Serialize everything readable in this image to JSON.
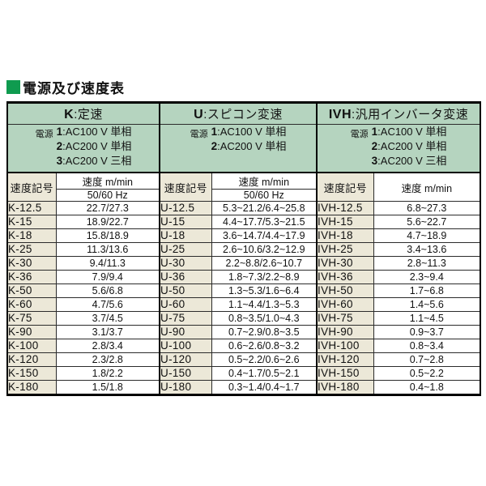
{
  "page": {
    "title": "電源及び速度表",
    "accent_green": "#0f9b4f",
    "header_green": "#b5d4bf",
    "label_beige": "#ece8d8"
  },
  "table": {
    "power_label": "電源",
    "speed_symbol_header": "速度記号",
    "speed_header": "速度 m/min",
    "hz_header": "50/60 Hz",
    "columns": [
      {
        "type_code": "K",
        "type_label": ":定速",
        "power_lines": [
          {
            "n": "1",
            "t": ":AC100 V 単相"
          },
          {
            "n": "2",
            "t": ":AC200 V 単相"
          },
          {
            "n": "3",
            "t": ":AC200 V 三相"
          }
        ],
        "has_hz_row": true,
        "rows": [
          [
            "K-12.5",
            "22.7/27.3"
          ],
          [
            "K-15",
            "18.9/22.7"
          ],
          [
            "K-18",
            "15.8/18.9"
          ],
          [
            "K-25",
            "11.3/13.6"
          ],
          [
            "K-30",
            "9.4/11.3"
          ],
          [
            "K-36",
            "7.9/9.4"
          ],
          [
            "K-50",
            "5.6/6.8"
          ],
          [
            "K-60",
            "4.7/5.6"
          ],
          [
            "K-75",
            "3.7/4.5"
          ],
          [
            "K-90",
            "3.1/3.7"
          ],
          [
            "K-100",
            "2.8/3.4"
          ],
          [
            "K-120",
            "2.3/2.8"
          ],
          [
            "K-150",
            "1.8/2.2"
          ],
          [
            "K-180",
            "1.5/1.8"
          ]
        ]
      },
      {
        "type_code": "U",
        "type_label": ":スピコン変速",
        "power_lines": [
          {
            "n": "1",
            "t": ":AC100 V 単相"
          },
          {
            "n": "2",
            "t": ":AC200 V 単相"
          }
        ],
        "has_hz_row": true,
        "rows": [
          [
            "U-12.5",
            "5.3~21.2/6.4~25.8"
          ],
          [
            "U-15",
            "4.4~17.7/5.3~21.5"
          ],
          [
            "U-18",
            "3.6~14.7/4.4~17.9"
          ],
          [
            "U-25",
            "2.6~10.6/3.2~12.9"
          ],
          [
            "U-30",
            "2.2~8.8/2.6~10.7"
          ],
          [
            "U-36",
            "1.8~7.3/2.2~8.9"
          ],
          [
            "U-50",
            "1.3~5.3/1.6~6.4"
          ],
          [
            "U-60",
            "1.1~4.4/1.3~5.3"
          ],
          [
            "U-75",
            "0.8~3.5/1.0~4.3"
          ],
          [
            "U-90",
            "0.7~2.9/0.8~3.5"
          ],
          [
            "U-100",
            "0.6~2.6/0.8~3.2"
          ],
          [
            "U-120",
            "0.5~2.2/0.6~2.6"
          ],
          [
            "U-150",
            "0.4~1.7/0.5~2.1"
          ],
          [
            "U-180",
            "0.3~1.4/0.4~1.7"
          ]
        ]
      },
      {
        "type_code": "IVH",
        "type_label": ":汎用インバータ変速",
        "power_lines": [
          {
            "n": "1",
            "t": ":AC100 V 単相"
          },
          {
            "n": "2",
            "t": ":AC200 V 単相"
          },
          {
            "n": "3",
            "t": ":AC200 V 三相"
          }
        ],
        "has_hz_row": false,
        "rows": [
          [
            "IVH-12.5",
            "6.8~27.3"
          ],
          [
            "IVH-15",
            "5.6~22.7"
          ],
          [
            "IVH-18",
            "4.7~18.9"
          ],
          [
            "IVH-25",
            "3.4~13.6"
          ],
          [
            "IVH-30",
            "2.8~11.3"
          ],
          [
            "IVH-36",
            "2.3~9.4"
          ],
          [
            "IVH-50",
            "1.7~6.8"
          ],
          [
            "IVH-60",
            "1.4~5.6"
          ],
          [
            "IVH-75",
            "1.1~4.5"
          ],
          [
            "IVH-90",
            "0.9~3.7"
          ],
          [
            "IVH-100",
            "0.8~3.4"
          ],
          [
            "IVH-120",
            "0.7~2.8"
          ],
          [
            "IVH-150",
            "0.5~2.2"
          ],
          [
            "IVH-180",
            "0.4~1.8"
          ]
        ]
      }
    ]
  }
}
